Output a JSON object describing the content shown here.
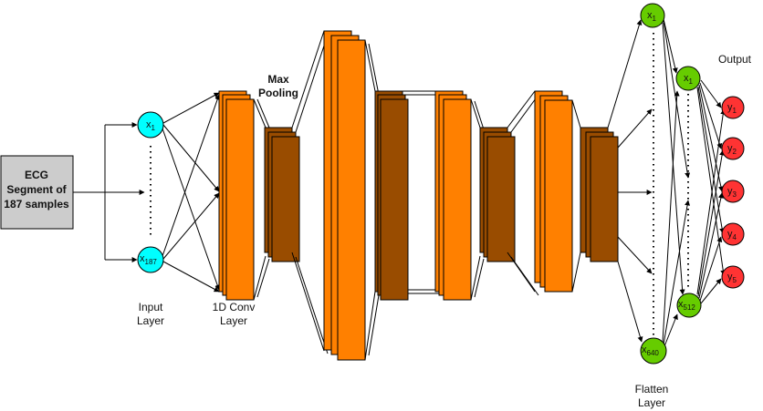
{
  "input_box": {
    "lines": [
      "ECG",
      "Segment of",
      "187 samples"
    ],
    "fill": "#cccccc"
  },
  "labels": {
    "input_layer": [
      "Input",
      "Layer"
    ],
    "conv_layer": [
      "1D Conv",
      "Layer"
    ],
    "max_pooling": [
      "Max",
      "Pooling"
    ],
    "flatten_layer": [
      "Flatten",
      "Layer"
    ],
    "output": "Output"
  },
  "input_nodes": [
    {
      "var": "x",
      "sub": "1"
    },
    {
      "var": "x",
      "sub": "187"
    }
  ],
  "flatten_nodes": [
    {
      "var": "x",
      "sub": "1"
    },
    {
      "var": "x",
      "sub": "640"
    }
  ],
  "dense_nodes": [
    {
      "var": "x",
      "sub": "1"
    },
    {
      "var": "x",
      "sub": "512"
    }
  ],
  "output_nodes": [
    {
      "var": "y",
      "sub": "1"
    },
    {
      "var": "y",
      "sub": "2"
    },
    {
      "var": "y",
      "sub": "3"
    },
    {
      "var": "y",
      "sub": "4"
    },
    {
      "var": "y",
      "sub": "5"
    }
  ],
  "colors": {
    "input_node": "#00ffff",
    "flatten_node": "#66cc00",
    "output_node": "#ff3333",
    "conv_block": "#ff8000",
    "pool_block": "#994c00",
    "input_box": "#cccccc"
  }
}
